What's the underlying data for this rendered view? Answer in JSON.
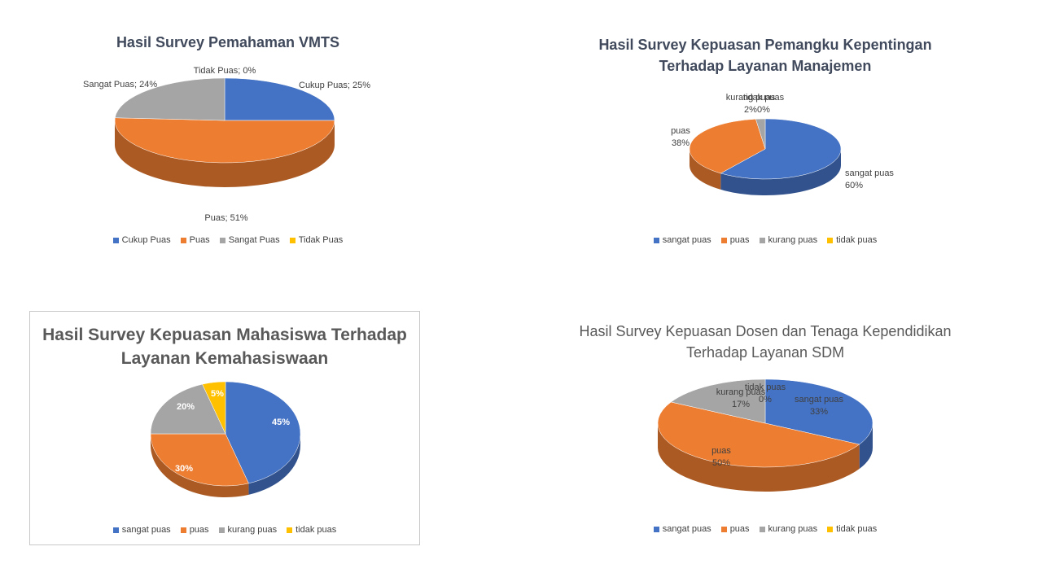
{
  "colors": {
    "sangat_blue": "#4472c4",
    "puas_orange": "#ed7d31",
    "gray": "#a5a5a5",
    "yellow": "#ffc000"
  },
  "chart_data": [
    {
      "type": "pie",
      "title": "Hasil Survey Pemahaman  VMTS",
      "categories": [
        "Cukup Puas",
        "Puas",
        "Sangat Puas",
        "Tidak Puas"
      ],
      "values": [
        25,
        51,
        24,
        0
      ],
      "data_labels": [
        "Cukup Puas; 25%",
        "Puas; 51%",
        "Sangat Puas; 24%",
        "Tidak Puas; 0%"
      ],
      "legend": [
        "Cukup Puas",
        "Puas",
        "Sangat Puas",
        "Tidak Puas"
      ],
      "legend_position": "bottom",
      "colors": [
        "#4472c4",
        "#ed7d31",
        "#a5a5a5",
        "#ffc000"
      ],
      "style": "3d"
    },
    {
      "type": "pie",
      "title": "Hasil  Survey  Kepuasan  Pemangku  Kepentingan  Terhadap  Layanan  Manajemen",
      "categories": [
        "sangat puas",
        "puas",
        "kurang puas",
        "tidak puas"
      ],
      "values": [
        60,
        38,
        2,
        0
      ],
      "data_labels": [
        "sangat puas\n60%",
        "puas\n38%",
        "kurang puas\n2%",
        "tidak puas\n0%"
      ],
      "legend": [
        "sangat puas",
        "puas",
        "kurang puas",
        "tidak puas"
      ],
      "legend_position": "bottom",
      "colors": [
        "#4472c4",
        "#ed7d31",
        "#a5a5a5",
        "#ffc000"
      ],
      "style": "3d"
    },
    {
      "type": "pie",
      "title": "Hasil Survey Kepuasan Mahasiswa Terhadap Layanan Kemahasiswaan",
      "categories": [
        "sangat puas",
        "puas",
        "kurang puas",
        "tidak puas"
      ],
      "values": [
        45,
        30,
        20,
        5
      ],
      "data_labels": [
        "45%",
        "30%",
        "20%",
        "5%"
      ],
      "legend": [
        "sangat puas",
        "puas",
        "kurang puas",
        "tidak puas"
      ],
      "legend_position": "bottom",
      "colors": [
        "#4472c4",
        "#ed7d31",
        "#a5a5a5",
        "#ffc000"
      ],
      "style": "3d"
    },
    {
      "type": "pie",
      "title": "Hasil Survey Kepuasan Dosen dan Tenaga Kependidikan Terhadap  Layanan SDM",
      "categories": [
        "sangat puas",
        "puas",
        "kurang puas",
        "tidak puas"
      ],
      "values": [
        33,
        50,
        17,
        0
      ],
      "data_labels": [
        "sangat puas\n33%",
        "puas\n50%",
        "kurang puas\n17%",
        "tidak puas\n0%"
      ],
      "legend": [
        "sangat puas",
        "puas",
        "kurang puas",
        "tidak puas"
      ],
      "legend_position": "bottom",
      "colors": [
        "#4472c4",
        "#ed7d31",
        "#a5a5a5",
        "#ffc000"
      ],
      "style": "3d"
    }
  ]
}
